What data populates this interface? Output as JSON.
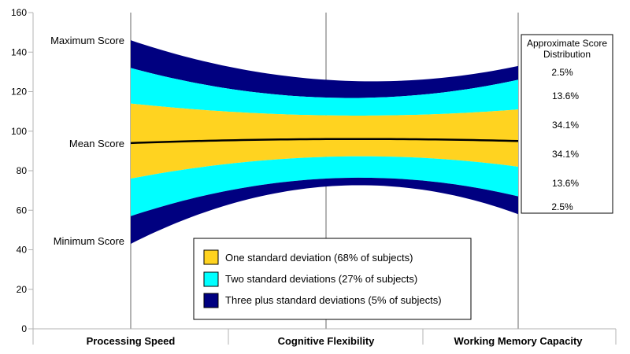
{
  "chart_data": {
    "type": "area",
    "categories": [
      "Processing Speed",
      "Cognitive Flexibility",
      "Working Memory Capacity"
    ],
    "ylim": [
      0,
      160
    ],
    "yticks": [
      0,
      20,
      40,
      60,
      80,
      100,
      120,
      140,
      160
    ],
    "grid": "vertical-lines-at-categories",
    "x": [
      0,
      1,
      2
    ],
    "bands": {
      "max": [
        146,
        126,
        133
      ],
      "plus2": [
        132,
        117,
        126
      ],
      "plus1": [
        114,
        108,
        111
      ],
      "minus1": [
        76,
        87,
        82
      ],
      "minus2": [
        57,
        76,
        67
      ],
      "min": [
        43,
        72,
        58
      ]
    },
    "mean_line": [
      94,
      96,
      95
    ],
    "annotations": {
      "max": "Maximum Score",
      "mean": "Mean Score",
      "min": "Minimum Score"
    },
    "legend": {
      "position": "bottom-center",
      "entries": [
        {
          "label": "One standard deviation (68% of subjects)",
          "color": "#ffd320"
        },
        {
          "label": "Two standard deviations (27% of subjects)",
          "color": "#00ffff"
        },
        {
          "label": "Three plus standard deviations (5% of subjects)",
          "color": "#000080"
        }
      ]
    },
    "distribution_box": {
      "title_line1": "Approximate Score",
      "title_line2": "Distribution",
      "values": [
        "2.5%",
        "13.6%",
        "34.1%",
        "34.1%",
        "13.6%",
        "2.5%"
      ]
    },
    "colors": {
      "one_sd": "#ffd320",
      "two_sd": "#00ffff",
      "three_sd": "#000080",
      "mean_line": "#000000",
      "grid": "#b3b3b3",
      "axis": "#b3b3b3"
    }
  }
}
